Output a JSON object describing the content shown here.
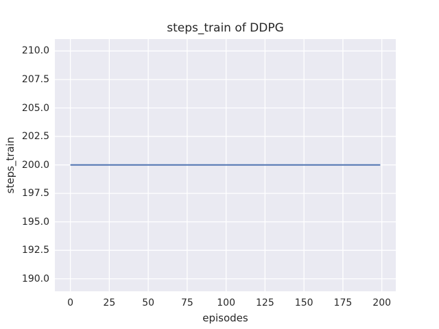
{
  "chart_data": {
    "type": "line",
    "title": "steps_train of DDPG",
    "xlabel": "episodes",
    "ylabel": "steps_train",
    "xlim": [
      -9.95,
      208.95
    ],
    "ylim": [
      188.9,
      211.05
    ],
    "xticks": [
      0,
      25,
      50,
      75,
      100,
      125,
      150,
      175,
      200
    ],
    "xtick_labels": [
      "0",
      "25",
      "50",
      "75",
      "100",
      "125",
      "150",
      "175",
      "200"
    ],
    "yticks": [
      190.0,
      192.5,
      195.0,
      197.5,
      200.0,
      202.5,
      205.0,
      207.5,
      210.0
    ],
    "ytick_labels": [
      "190.0",
      "192.5",
      "195.0",
      "197.5",
      "200.0",
      "202.5",
      "205.0",
      "207.5",
      "210.0"
    ],
    "grid": true,
    "legend": false,
    "series": [
      {
        "name": "steps_train",
        "color": "#4c72b0",
        "x": [
          0,
          199
        ],
        "y": [
          200,
          200
        ],
        "description": "constant value 200 for every episode from 0 to 199"
      }
    ],
    "colors": {
      "figure_background": "#ffffff",
      "plot_background": "#eaeaf2",
      "grid_color": "#ffffff",
      "text_color": "#262626",
      "line_color": "#4c72b0"
    }
  }
}
